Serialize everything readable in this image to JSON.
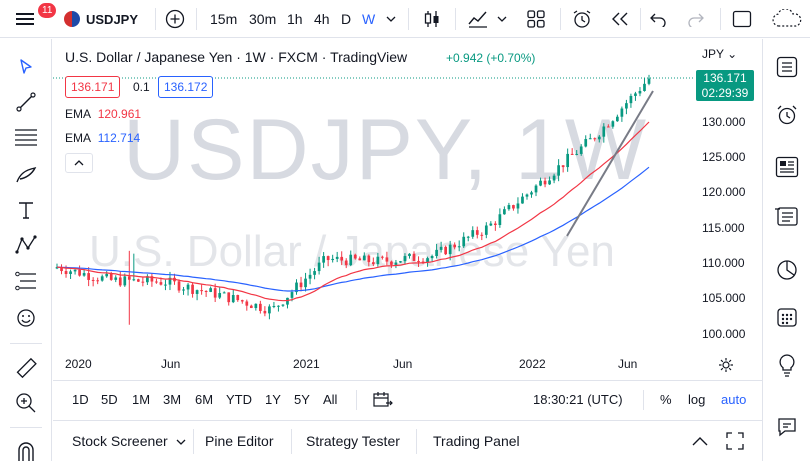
{
  "topbar": {
    "notification_count": "11",
    "symbol": "USDJPY",
    "timeframes": [
      "15m",
      "30m",
      "1h",
      "4h",
      "D",
      "W"
    ],
    "active_timeframe": "W"
  },
  "legend": {
    "title": "U.S. Dollar / Japanese Yen · 1W · FXCM · TradingView",
    "change": "+0.942 (+0.70%)",
    "bid": "136.171",
    "spread": "0.1",
    "ask": "136.172",
    "ema1_label": "EMA",
    "ema1_value": "120.961",
    "ema2_label": "EMA",
    "ema2_value": "112.714"
  },
  "watermark": {
    "ticker": "USDJPY, 1W",
    "name": "U.S. Dollar / Japanese Yen"
  },
  "price_axis": {
    "currency": "JPY",
    "current_price": "136.171",
    "countdown": "02:29:39",
    "labels": [
      "130.000",
      "125.000",
      "120.000",
      "115.000",
      "110.000",
      "105.000",
      "100.000"
    ]
  },
  "time_axis": {
    "labels": [
      "2020",
      "Jun",
      "2021",
      "Jun",
      "2022",
      "Jun"
    ]
  },
  "rangebar": {
    "ranges": [
      "1D",
      "5D",
      "1M",
      "3M",
      "6M",
      "YTD",
      "1Y",
      "5Y",
      "All"
    ],
    "clock": "18:30:21 (UTC)",
    "percent": "%",
    "log": "log",
    "auto": "auto"
  },
  "bottom": {
    "tabs": [
      "Stock Screener",
      "Pine Editor",
      "Strategy Tester",
      "Trading Panel"
    ]
  },
  "colors": {
    "up": "#089981",
    "down": "#f23645",
    "ema_fast": "#f23645",
    "ema_slow": "#2962ff",
    "accent": "#2962ff"
  },
  "chart_data": {
    "type": "candlestick",
    "symbol": "USDJPY",
    "interval": "1W",
    "x_axis_labels": [
      "2020",
      "Jun",
      "2021",
      "Jun",
      "2022",
      "Jun"
    ],
    "y_axis_labels": [
      100,
      105,
      110,
      115,
      120,
      125,
      130
    ],
    "ylim": [
      98,
      138
    ],
    "approx_close_path": [
      {
        "x": "2019-12",
        "close": 109.4
      },
      {
        "x": "2020-03",
        "close": 107.5
      },
      {
        "x": "2020-06",
        "close": 107.3
      },
      {
        "x": "2020-09",
        "close": 105.5
      },
      {
        "x": "2020-12",
        "close": 103.3
      },
      {
        "x": "2021-03",
        "close": 110.5
      },
      {
        "x": "2021-06",
        "close": 110.2
      },
      {
        "x": "2021-09",
        "close": 111.0
      },
      {
        "x": "2021-12",
        "close": 115.0
      },
      {
        "x": "2022-03",
        "close": 121.5
      },
      {
        "x": "2022-05",
        "close": 128.0
      },
      {
        "x": "2022-06",
        "close": 136.171
      }
    ],
    "ema_series": [
      {
        "name": "EMA",
        "last": 120.961
      },
      {
        "name": "EMA",
        "last": 112.714
      }
    ]
  }
}
